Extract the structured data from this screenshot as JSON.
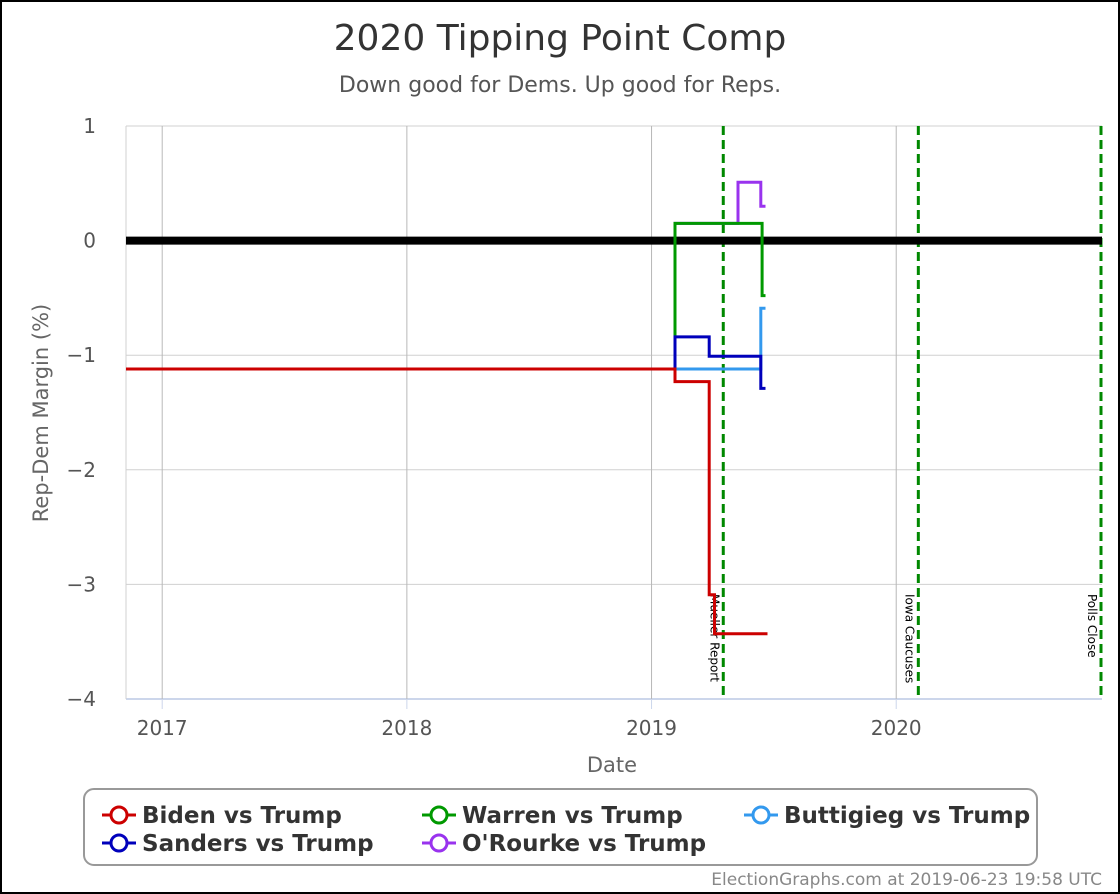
{
  "chart_data": {
    "type": "line",
    "title": "2020 Tipping Point Comp",
    "subtitle": "Down good for Dems. Up good for Reps.",
    "xlabel": "Date",
    "ylabel": "Rep-Dem Margin (%)",
    "xlim": [
      "2016-11-08",
      "2020-11-03"
    ],
    "ylim": [
      -4,
      1
    ],
    "x_ticks": [
      "2017-01-01",
      "2018-01-01",
      "2019-01-01",
      "2020-01-01"
    ],
    "x_tick_labels": [
      "2017",
      "2018",
      "2019",
      "2020"
    ],
    "y_ticks": [
      -4,
      -3,
      -2,
      -1,
      0,
      1
    ],
    "y_tick_labels": [
      "−4",
      "−3",
      "−2",
      "−1",
      "0",
      "1"
    ],
    "grid": true,
    "zero_line": 0,
    "legend_position": "bottom",
    "events": [
      {
        "date": "2019-04-18",
        "label": "Mueller Report"
      },
      {
        "date": "2020-02-03",
        "label": "Iowa Caucuses"
      },
      {
        "date": "2020-11-03",
        "label": "Polls Close"
      }
    ],
    "series": [
      {
        "name": "Biden vs Trump",
        "color": "#cc0000",
        "step": true,
        "points": [
          [
            "2016-11-08",
            -1.12
          ],
          [
            "2019-02-05",
            -1.12
          ],
          [
            "2019-02-05",
            -1.23
          ],
          [
            "2019-03-28",
            -1.23
          ],
          [
            "2019-03-28",
            -3.09
          ],
          [
            "2019-04-05",
            -3.09
          ],
          [
            "2019-04-05",
            -3.43
          ],
          [
            "2019-06-23",
            -3.43
          ]
        ]
      },
      {
        "name": "Sanders vs Trump",
        "color": "#0000bb",
        "step": true,
        "points": [
          [
            "2016-11-08",
            -1.12
          ],
          [
            "2019-02-05",
            -1.12
          ],
          [
            "2019-02-05",
            -0.84
          ],
          [
            "2019-03-28",
            -0.84
          ],
          [
            "2019-03-28",
            -1.01
          ],
          [
            "2019-06-13",
            -1.01
          ],
          [
            "2019-06-13",
            -1.29
          ],
          [
            "2019-06-20",
            -1.29
          ]
        ]
      },
      {
        "name": "Warren vs Trump",
        "color": "#009900",
        "step": true,
        "points": [
          [
            "2016-11-08",
            -1.12
          ],
          [
            "2019-02-05",
            -1.12
          ],
          [
            "2019-02-05",
            0.15
          ],
          [
            "2019-06-15",
            0.15
          ],
          [
            "2019-06-15",
            -0.48
          ],
          [
            "2019-06-20",
            -0.48
          ]
        ]
      },
      {
        "name": "Buttigieg vs Trump",
        "color": "#3399ee",
        "step": true,
        "points": [
          [
            "2016-11-08",
            -1.12
          ],
          [
            "2019-06-13",
            -1.12
          ],
          [
            "2019-06-13",
            -0.59
          ],
          [
            "2019-06-20",
            -0.59
          ]
        ]
      },
      {
        "name": "O'Rourke vs Trump",
        "color": "#9933ee",
        "step": true,
        "points": [
          [
            "2016-11-08",
            -1.12
          ],
          [
            "2019-02-05",
            -1.12
          ],
          [
            "2019-02-05",
            0.15
          ],
          [
            "2019-05-10",
            0.15
          ],
          [
            "2019-05-10",
            0.51
          ],
          [
            "2019-06-13",
            0.51
          ],
          [
            "2019-06-13",
            0.3
          ],
          [
            "2019-06-20",
            0.3
          ]
        ]
      }
    ]
  },
  "legend_order": [
    0,
    2,
    3,
    1,
    4
  ],
  "credit": "ElectionGraphs.com at 2019-06-23 19:58 UTC"
}
